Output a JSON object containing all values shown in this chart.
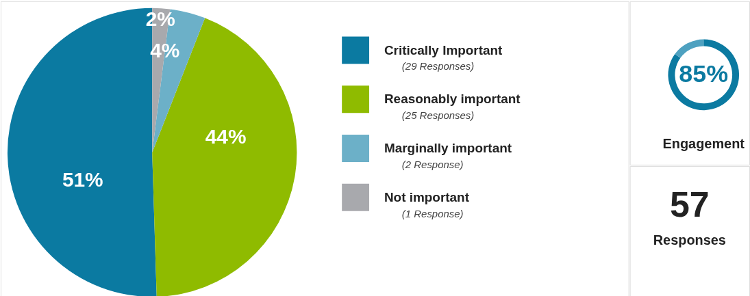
{
  "chart_data": [
    {
      "type": "pie",
      "categories": [
        "Critically Important",
        "Reasonably important",
        "Marginally important",
        "Not important"
      ],
      "annotations": [
        "(29 Responses)",
        "(25 Responses)",
        "(2 Response)",
        "(1 Response)"
      ],
      "values": [
        51,
        44,
        4,
        2
      ],
      "colors": [
        "#0b7aa1",
        "#8fbb00",
        "#6cb0c8",
        "#a8a9ad"
      ],
      "value_labels": [
        "51%",
        "44%",
        "4%",
        "2%"
      ],
      "legend": "right"
    },
    {
      "type": "donut",
      "categories": [
        null,
        null
      ],
      "values": [
        85,
        15
      ],
      "colors": [
        "#0b7aa1",
        "#4ea1c0"
      ],
      "value_labels": [
        "85%",
        null
      ],
      "title": "Engagement"
    },
    {
      "type": "other",
      "annotations": [
        "57",
        "Responses"
      ]
    }
  ]
}
